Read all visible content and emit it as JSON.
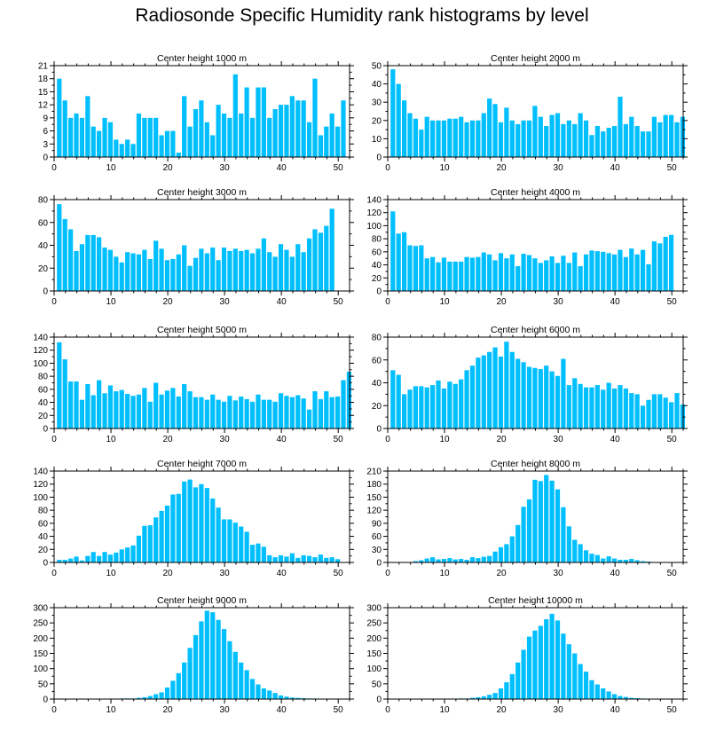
{
  "title": "Radiosonde Specific Humidity rank histograms by level",
  "bar_color": "#00BFFF",
  "chart_data": [
    {
      "type": "bar",
      "title": "Center height 1000 m",
      "xlim": [
        0,
        52
      ],
      "x_ticks": [
        0,
        10,
        20,
        30,
        40,
        50
      ],
      "y_ticks": [
        0,
        3,
        6,
        9,
        12,
        15,
        18,
        21
      ],
      "ylim": [
        0,
        21
      ],
      "values": [
        18,
        13,
        9,
        10,
        9,
        14,
        7,
        6,
        9,
        8,
        4,
        3,
        4,
        3,
        10,
        9,
        9,
        9,
        5,
        6,
        6,
        1,
        14,
        7,
        11,
        13,
        8,
        5,
        12,
        10,
        9,
        19,
        10,
        16,
        9,
        16,
        16,
        9,
        11,
        12,
        12,
        14,
        13,
        13,
        8,
        18,
        5,
        7,
        10,
        7,
        13
      ]
    },
    {
      "type": "bar",
      "title": "Center height 2000 m",
      "xlim": [
        0,
        52
      ],
      "x_ticks": [
        0,
        10,
        20,
        30,
        40,
        50
      ],
      "y_ticks": [
        0,
        10,
        20,
        30,
        40,
        50
      ],
      "ylim": [
        0,
        50
      ],
      "values": [
        48,
        40,
        31,
        24,
        21,
        15,
        22,
        20,
        20,
        20,
        21,
        21,
        22,
        19,
        20,
        20,
        24,
        32,
        29,
        19,
        27,
        20,
        18,
        20,
        20,
        28,
        22,
        17,
        23,
        24,
        18,
        20,
        18,
        24,
        20,
        12,
        17,
        14,
        16,
        17,
        33,
        18,
        22,
        17,
        14,
        14,
        22,
        19,
        23,
        23,
        19,
        22
      ]
    },
    {
      "type": "bar",
      "title": "Center height 3000 m",
      "xlim": [
        0,
        52
      ],
      "x_ticks": [
        0,
        10,
        20,
        30,
        40,
        50
      ],
      "y_ticks": [
        0,
        20,
        40,
        60,
        80
      ],
      "ylim": [
        0,
        80
      ],
      "values": [
        76,
        63,
        54,
        35,
        41,
        49,
        49,
        47,
        38,
        36,
        30,
        25,
        34,
        33,
        32,
        36,
        28,
        44,
        37,
        27,
        28,
        32,
        40,
        22,
        29,
        37,
        33,
        38,
        27,
        38,
        35,
        37,
        35,
        36,
        33,
        37,
        46,
        34,
        30,
        41,
        36,
        30,
        41,
        34,
        46,
        54,
        51,
        57,
        72
      ]
    },
    {
      "type": "bar",
      "title": "Center height 4000 m",
      "xlim": [
        0,
        52
      ],
      "x_ticks": [
        0,
        10,
        20,
        30,
        40,
        50
      ],
      "y_ticks": [
        0,
        20,
        40,
        60,
        80,
        100,
        120,
        140
      ],
      "ylim": [
        0,
        140
      ],
      "values": [
        122,
        88,
        90,
        70,
        69,
        70,
        50,
        52,
        44,
        51,
        45,
        45,
        45,
        52,
        51,
        52,
        59,
        56,
        47,
        58,
        50,
        56,
        38,
        57,
        55,
        50,
        43,
        47,
        53,
        43,
        54,
        43,
        59,
        38,
        56,
        62,
        61,
        60,
        58,
        56,
        63,
        52,
        65,
        56,
        63,
        41,
        76,
        73,
        83,
        86
      ]
    },
    {
      "type": "bar",
      "title": "Center height 5000 m",
      "xlim": [
        0,
        52
      ],
      "x_ticks": [
        0,
        10,
        20,
        30,
        40,
        50
      ],
      "y_ticks": [
        0,
        20,
        40,
        60,
        80,
        100,
        120,
        140
      ],
      "ylim": [
        0,
        140
      ],
      "values": [
        132,
        106,
        72,
        72,
        44,
        68,
        51,
        74,
        54,
        66,
        57,
        59,
        53,
        50,
        52,
        62,
        41,
        70,
        52,
        58,
        62,
        49,
        68,
        57,
        48,
        48,
        44,
        52,
        44,
        41,
        50,
        43,
        49,
        45,
        41,
        52,
        44,
        44,
        41,
        54,
        50,
        48,
        51,
        46,
        29,
        57,
        45,
        57,
        48,
        49,
        74,
        87
      ]
    },
    {
      "type": "bar",
      "title": "Center height 6000 m",
      "xlim": [
        0,
        52
      ],
      "x_ticks": [
        0,
        10,
        20,
        30,
        40,
        50
      ],
      "y_ticks": [
        0,
        20,
        40,
        60,
        80
      ],
      "ylim": [
        0,
        80
      ],
      "values": [
        51,
        47,
        30,
        34,
        37,
        37,
        36,
        38,
        42,
        35,
        41,
        39,
        43,
        51,
        55,
        62,
        64,
        67,
        71,
        63,
        76,
        67,
        61,
        58,
        54,
        53,
        52,
        55,
        50,
        46,
        61,
        38,
        44,
        39,
        36,
        36,
        38,
        34,
        40,
        35,
        38,
        35,
        31,
        30,
        20,
        25,
        30,
        30,
        27,
        23,
        31,
        21
      ]
    },
    {
      "type": "bar",
      "title": "Center height 7000 m",
      "xlim": [
        0,
        52
      ],
      "x_ticks": [
        0,
        10,
        20,
        30,
        40,
        50
      ],
      "y_ticks": [
        0,
        20,
        40,
        60,
        80,
        100,
        120,
        140
      ],
      "ylim": [
        0,
        140
      ],
      "values": [
        4,
        4,
        6,
        9,
        3,
        10,
        16,
        10,
        16,
        12,
        15,
        20,
        23,
        26,
        41,
        56,
        57,
        69,
        79,
        87,
        104,
        105,
        124,
        127,
        115,
        120,
        114,
        98,
        84,
        66,
        66,
        61,
        55,
        47,
        27,
        29,
        24,
        11,
        8,
        11,
        9,
        14,
        7,
        11,
        10,
        8,
        12,
        7,
        8,
        5
      ]
    },
    {
      "type": "bar",
      "title": "Center height 8000 m",
      "xlim": [
        0,
        52
      ],
      "x_ticks": [
        0,
        10,
        20,
        30,
        40,
        50
      ],
      "y_ticks": [
        0,
        30,
        60,
        90,
        120,
        150,
        180,
        210
      ],
      "ylim": [
        0,
        210
      ],
      "values": [
        0,
        0,
        1,
        1,
        3,
        5,
        9,
        12,
        7,
        8,
        10,
        7,
        8,
        6,
        12,
        10,
        13,
        15,
        25,
        35,
        42,
        60,
        86,
        128,
        145,
        190,
        187,
        201,
        188,
        168,
        127,
        83,
        52,
        42,
        28,
        20,
        17,
        9,
        14,
        9,
        6,
        6,
        8,
        5,
        3,
        2,
        1,
        1,
        1,
        1,
        1
      ]
    },
    {
      "type": "bar",
      "title": "Center height 9000 m",
      "xlim": [
        0,
        52
      ],
      "x_ticks": [
        0,
        10,
        20,
        30,
        40,
        50
      ],
      "y_ticks": [
        0,
        50,
        100,
        150,
        200,
        250,
        300
      ],
      "ylim": [
        0,
        300
      ],
      "values": [
        1,
        1,
        1,
        1,
        1,
        1,
        1,
        1,
        1,
        1,
        1,
        2,
        2,
        2,
        4,
        6,
        10,
        16,
        22,
        38,
        60,
        85,
        120,
        168,
        210,
        255,
        290,
        285,
        260,
        230,
        190,
        155,
        120,
        95,
        66,
        48,
        35,
        28,
        20,
        12,
        8,
        5,
        4,
        3,
        2,
        2,
        1,
        1,
        1,
        1,
        1
      ]
    },
    {
      "type": "bar",
      "title": "Center height 10000 m",
      "xlim": [
        0,
        52
      ],
      "x_ticks": [
        0,
        10,
        20,
        30,
        40,
        50
      ],
      "y_ticks": [
        0,
        50,
        100,
        150,
        200,
        250,
        300
      ],
      "ylim": [
        0,
        300
      ],
      "values": [
        1,
        1,
        1,
        1,
        1,
        1,
        1,
        1,
        1,
        1,
        1,
        1,
        2,
        2,
        4,
        6,
        9,
        14,
        20,
        35,
        55,
        82,
        120,
        162,
        205,
        225,
        240,
        262,
        280,
        258,
        215,
        180,
        150,
        115,
        90,
        62,
        48,
        35,
        25,
        16,
        10,
        7,
        4,
        3,
        2,
        1,
        1,
        1,
        1,
        1,
        1
      ]
    }
  ]
}
